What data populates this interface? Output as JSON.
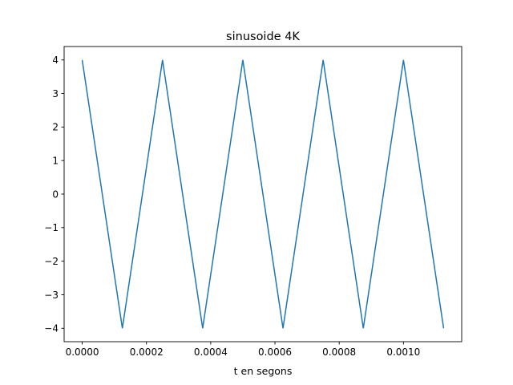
{
  "chart_data": {
    "type": "line",
    "title": "sinusoide 4K",
    "xlabel": "t en segons",
    "ylabel": "",
    "xlim": [
      -5.63e-05,
      0.0011813
    ],
    "ylim": [
      -4.4,
      4.4
    ],
    "x_ticks": [
      0.0,
      0.0002,
      0.0004,
      0.0006,
      0.0008,
      0.001
    ],
    "x_tick_labels": [
      "0.0000",
      "0.0002",
      "0.0004",
      "0.0006",
      "0.0008",
      "0.0010"
    ],
    "y_ticks": [
      4,
      3,
      2,
      1,
      0,
      -1,
      -2,
      -3,
      -4
    ],
    "y_tick_labels": [
      "4",
      "3",
      "2",
      "1",
      "0",
      "−1",
      "−2",
      "−3",
      "−4"
    ],
    "grid": false,
    "series": [
      {
        "color": "#1f77b4",
        "x": [
          0.0,
          0.000125,
          0.00025,
          0.000375,
          0.0005,
          0.000625,
          0.00075,
          0.000875,
          0.001,
          0.001125
        ],
        "y": [
          4,
          -4,
          4,
          -4,
          4,
          -4,
          4,
          -4,
          4,
          -4
        ]
      }
    ]
  }
}
